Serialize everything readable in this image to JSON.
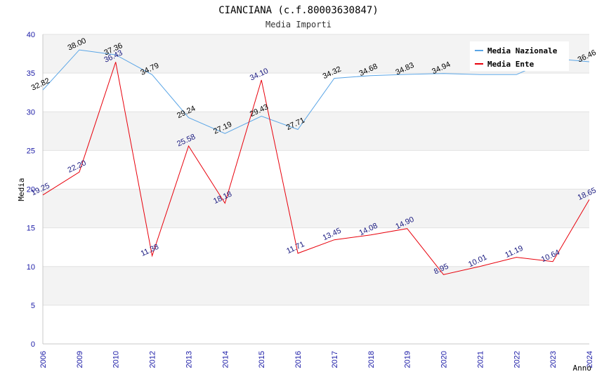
{
  "chart_data": {
    "type": "line",
    "title": "CIANCIANA (c.f.80003630847)",
    "subtitle": "Media Importi",
    "xlabel": "Anno",
    "ylabel": "Media",
    "ylim": [
      0,
      40
    ],
    "yticks": [
      "0",
      "5",
      "10",
      "15",
      "20",
      "25",
      "30",
      "35",
      "40"
    ],
    "categories": [
      "2006",
      "2009",
      "2010",
      "2012",
      "2013",
      "2014",
      "2015",
      "2016",
      "2017",
      "2018",
      "2019",
      "2020",
      "2021",
      "2022",
      "2023",
      "2024"
    ],
    "legend_position": "top-right",
    "grid": true,
    "series": [
      {
        "name": "Media Nazionale",
        "color": "#5aa5e6",
        "values": [
          32.82,
          38.0,
          37.36,
          34.79,
          29.24,
          27.19,
          29.43,
          27.71,
          34.32,
          34.68,
          34.83,
          34.94,
          34.8,
          34.8,
          36.9,
          36.46
        ],
        "labels": [
          "32.82",
          "38.00",
          "37.36",
          "34.79",
          "29.24",
          "27.19",
          "29.43",
          "27.71",
          "34.32",
          "34.68",
          "34.83",
          "34.94",
          "",
          "",
          "",
          "36.46"
        ]
      },
      {
        "name": "Media Ente",
        "color": "#e8000b",
        "values": [
          19.25,
          22.2,
          36.43,
          11.38,
          25.58,
          18.18,
          34.1,
          11.71,
          13.45,
          14.08,
          14.9,
          8.95,
          10.01,
          11.19,
          10.64,
          18.65
        ],
        "labels": [
          "19.25",
          "22.20",
          "36.43",
          "11.38",
          "25.58",
          "18.18",
          "34.10",
          "11.71",
          "13.45",
          "14.08",
          "14.90",
          "8.95",
          "10.01",
          "11.19",
          "10.64",
          "18.65"
        ]
      }
    ]
  }
}
